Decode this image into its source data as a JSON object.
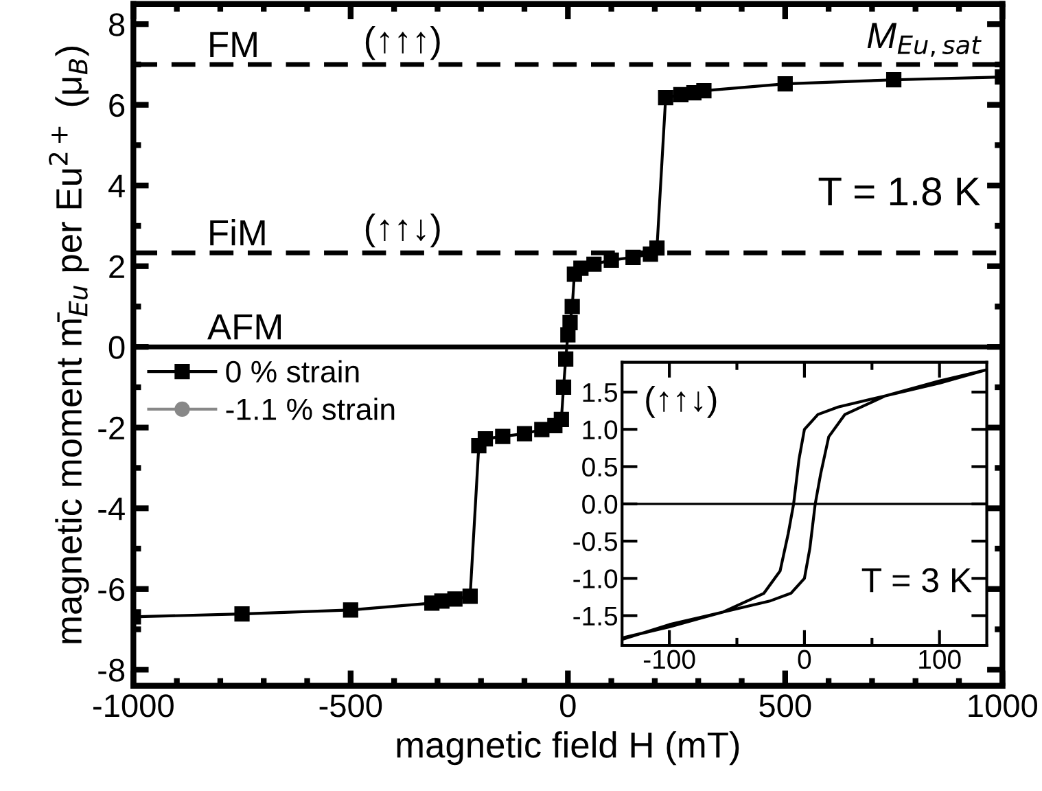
{
  "chart_data": [
    {
      "type": "line",
      "xlabel": "magnetic field H (mT)",
      "ylabel": "magnetic moment m̄$_{Eu}$ per Eu$^{2+}$ (μ$_{B}$)",
      "x": [
        -1000,
        -750,
        -500,
        -313,
        -290,
        -260,
        -225,
        -205,
        -190,
        -150,
        -100,
        -60,
        -30,
        -15,
        -10,
        -5,
        0,
        5,
        10,
        15,
        30,
        60,
        100,
        150,
        190,
        205,
        225,
        260,
        290,
        313,
        500,
        750,
        1000
      ],
      "series": [
        {
          "name": "0 % strain",
          "color": "#000000",
          "marker": "square",
          "values": [
            -6.69,
            -6.62,
            -6.52,
            -6.35,
            -6.3,
            -6.25,
            -6.18,
            -2.45,
            -2.28,
            -2.22,
            -2.15,
            -2.05,
            -1.95,
            -1.8,
            -1.0,
            -0.3,
            0.3,
            0.6,
            1.0,
            1.8,
            1.95,
            2.05,
            2.15,
            2.22,
            2.3,
            2.45,
            6.18,
            6.25,
            6.3,
            6.35,
            6.52,
            6.62,
            6.69
          ]
        },
        {
          "name": "-1.1 % strain",
          "color": "#888888",
          "marker": "circle",
          "values": [
            null,
            null,
            null,
            null,
            null,
            null,
            null,
            null,
            null,
            null,
            null,
            null,
            null,
            null,
            null,
            null,
            null,
            null,
            null,
            null,
            null,
            null,
            null,
            null,
            null,
            null,
            null,
            null,
            null,
            null,
            null,
            null,
            null
          ]
        }
      ],
      "xlim": [
        -1000,
        1000
      ],
      "xticks": [
        -1000,
        {
          "value": -900,
          "label": null
        },
        {
          "value": -800,
          "label": null
        },
        {
          "value": -700,
          "label": null
        },
        {
          "value": -600,
          "label": null
        },
        -500,
        {
          "value": -400,
          "label": null
        },
        {
          "value": -300,
          "label": null
        },
        {
          "value": -200,
          "label": null
        },
        {
          "value": -100,
          "label": null
        },
        0,
        {
          "value": 100,
          "label": null
        },
        {
          "value": 200,
          "label": null
        },
        {
          "value": 300,
          "label": null
        },
        {
          "value": 400,
          "label": null
        },
        500,
        {
          "value": 600,
          "label": null
        },
        {
          "value": 700,
          "label": null
        },
        {
          "value": 800,
          "label": null
        },
        {
          "value": 900,
          "label": null
        },
        1000
      ],
      "ylim": [
        -8.4,
        8.5
      ],
      "yticks": [
        -8,
        {
          "value": -7,
          "label": null
        },
        -6,
        {
          "value": -5,
          "label": null
        },
        -4,
        {
          "value": -3,
          "label": null
        },
        -2,
        {
          "value": -1,
          "label": null
        },
        0,
        {
          "value": 1,
          "label": null
        },
        2,
        {
          "value": 3,
          "label": null
        },
        4,
        {
          "value": 5,
          "label": null
        },
        6,
        {
          "value": 7,
          "label": null
        },
        8
      ],
      "ref_lines": [
        {
          "axis": "y",
          "value": 7,
          "label": "FM",
          "line_style": "dashed",
          "color": "#000000"
        },
        {
          "axis": "y",
          "value": 2.33,
          "label": "FiM",
          "line_style": "dashed",
          "color": "#000000"
        },
        {
          "axis": "y",
          "value": 0,
          "label": "AFM",
          "line_style": "solid",
          "color": "#000000"
        }
      ],
      "annotations": [
        "(↑↑↑)",
        "(↑↑↓)",
        "M$_{Eu,sat}$",
        "T = 1.8 K"
      ],
      "legend": "left",
      "grid": false,
      "line_style": "solid"
    },
    {
      "type": "line",
      "series": [
        {
          "color": "#000000",
          "x": [
            -135,
            -100,
            -60,
            -25,
            -10,
            0,
            4,
            8,
            12,
            18,
            30,
            60,
            100,
            135,
            100,
            60,
            25,
            10,
            0,
            -4,
            -8,
            -12,
            -18,
            -30,
            -60,
            -100,
            -135
          ],
          "values": [
            -1.82,
            -1.62,
            -1.45,
            -1.3,
            -1.2,
            -1.0,
            -0.6,
            0,
            0.4,
            0.9,
            1.2,
            1.45,
            1.65,
            1.8,
            1.62,
            1.45,
            1.3,
            1.2,
            1.0,
            0.6,
            0,
            -0.4,
            -0.9,
            -1.2,
            -1.45,
            -1.65,
            -1.8
          ]
        }
      ],
      "xlim": [
        -135,
        135
      ],
      "xticks": [
        -100,
        {
          "value": -50,
          "label": null
        },
        0,
        {
          "value": 50,
          "label": null
        },
        100
      ],
      "ylim": [
        -1.9,
        1.9
      ],
      "yticks": [
        -1.5,
        {
          "value": -1,
          "label": "-1.0"
        },
        -0.5,
        {
          "value": 0,
          "label": "0.0"
        },
        0.5,
        {
          "value": 1,
          "label": "1.0"
        },
        1.5
      ],
      "ref_lines": [
        {
          "axis": "y",
          "value": 0,
          "line_style": "solid",
          "color": "#000000"
        }
      ],
      "annotations": [
        "(↑↑↓)",
        "T = 3 K"
      ],
      "grid": false,
      "line_style": "solid"
    }
  ]
}
